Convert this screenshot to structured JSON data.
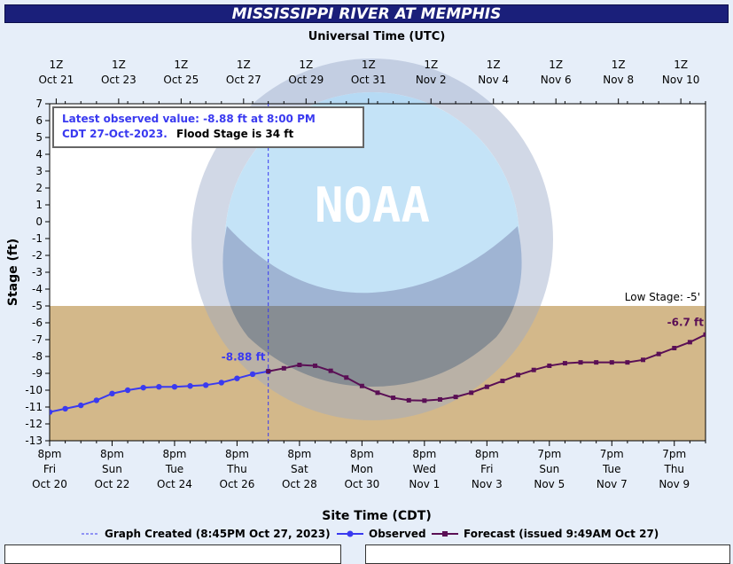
{
  "title": "MISSISSIPPI RIVER AT MEMPHIS",
  "chart_data": {
    "type": "line",
    "top_axis_title": "Universal Time (UTC)",
    "xlabel": "Site Time (CDT)",
    "ylabel": "Stage (ft)",
    "ylim": [
      -13,
      7
    ],
    "yticks": [
      7,
      6,
      5,
      4,
      3,
      2,
      1,
      0,
      -1,
      -2,
      -3,
      -4,
      -5,
      -6,
      -7,
      -8,
      -9,
      -10,
      -11,
      -12,
      -13
    ],
    "xlim_days": [
      0,
      21
    ],
    "top_ticks": [
      {
        "l1": "1Z",
        "l2": "Oct 21"
      },
      {
        "l1": "1Z",
        "l2": "Oct 23"
      },
      {
        "l1": "1Z",
        "l2": "Oct 25"
      },
      {
        "l1": "1Z",
        "l2": "Oct 27"
      },
      {
        "l1": "1Z",
        "l2": "Oct 29"
      },
      {
        "l1": "1Z",
        "l2": "Oct 31"
      },
      {
        "l1": "1Z",
        "l2": "Nov 2"
      },
      {
        "l1": "1Z",
        "l2": "Nov 4"
      },
      {
        "l1": "1Z",
        "l2": "Nov 6"
      },
      {
        "l1": "1Z",
        "l2": "Nov 8"
      },
      {
        "l1": "1Z",
        "l2": "Nov 10"
      }
    ],
    "bottom_ticks": [
      {
        "l1": "8pm",
        "l2": "Fri",
        "l3": "Oct 20"
      },
      {
        "l1": "8pm",
        "l2": "Sun",
        "l3": "Oct 22"
      },
      {
        "l1": "8pm",
        "l2": "Tue",
        "l3": "Oct 24"
      },
      {
        "l1": "8pm",
        "l2": "Thu",
        "l3": "Oct 26"
      },
      {
        "l1": "8pm",
        "l2": "Sat",
        "l3": "Oct 28"
      },
      {
        "l1": "8pm",
        "l2": "Mon",
        "l3": "Oct 30"
      },
      {
        "l1": "8pm",
        "l2": "Wed",
        "l3": "Nov 1"
      },
      {
        "l1": "8pm",
        "l2": "Fri",
        "l3": "Nov 3"
      },
      {
        "l1": "7pm",
        "l2": "Sun",
        "l3": "Nov 5"
      },
      {
        "l1": "7pm",
        "l2": "Tue",
        "l3": "Nov 7"
      },
      {
        "l1": "7pm",
        "l2": "Thu",
        "l3": "Nov 9"
      }
    ],
    "low_stage": -5,
    "low_stage_label": "Low Stage: -5'",
    "graph_created_label": "Graph Created (8:45PM Oct 27, 2023)",
    "annotation": {
      "part1": "Latest observed value: -8.88 ft at 8:00 PM",
      "part2": "CDT 27-Oct-2023.",
      "part3": "Flood Stage is 34 ft"
    },
    "watermark": "NOAA",
    "series": [
      {
        "name": "Observed",
        "color": "#3a3af0",
        "last_label": "-8.88 ft",
        "x": [
          0,
          0.5,
          1,
          1.5,
          2,
          2.5,
          3,
          3.5,
          4,
          4.5,
          5,
          5.5,
          6,
          6.5,
          7
        ],
        "y": [
          -11.3,
          -11.1,
          -10.9,
          -10.6,
          -10.2,
          -10.0,
          -9.85,
          -9.8,
          -9.8,
          -9.75,
          -9.7,
          -9.55,
          -9.3,
          -9.05,
          -8.88
        ]
      },
      {
        "name": "Forecast (issued 9:49AM Oct 27)",
        "color": "#5a0f55",
        "last_label": "-6.7 ft",
        "x": [
          7,
          7.5,
          8,
          8.5,
          9,
          9.5,
          10,
          10.5,
          11,
          11.5,
          12,
          12.5,
          13,
          13.5,
          14,
          14.5,
          15,
          15.5,
          16,
          16.5,
          17,
          17.5,
          18,
          18.5,
          19,
          19.5,
          20,
          20.5,
          21
        ],
        "y": [
          -8.88,
          -8.7,
          -8.5,
          -8.55,
          -8.85,
          -9.25,
          -9.75,
          -10.15,
          -10.45,
          -10.6,
          -10.62,
          -10.55,
          -10.4,
          -10.15,
          -9.8,
          -9.45,
          -9.1,
          -8.8,
          -8.55,
          -8.4,
          -8.35,
          -8.35,
          -8.35,
          -8.35,
          -8.2,
          -7.85,
          -7.5,
          -7.15,
          -6.7
        ]
      }
    ]
  },
  "legend": {
    "graph_created": "Graph Created (8:45PM Oct 27, 2023)",
    "observed": "Observed",
    "forecast": "Forecast (issued 9:49AM Oct 27)"
  }
}
